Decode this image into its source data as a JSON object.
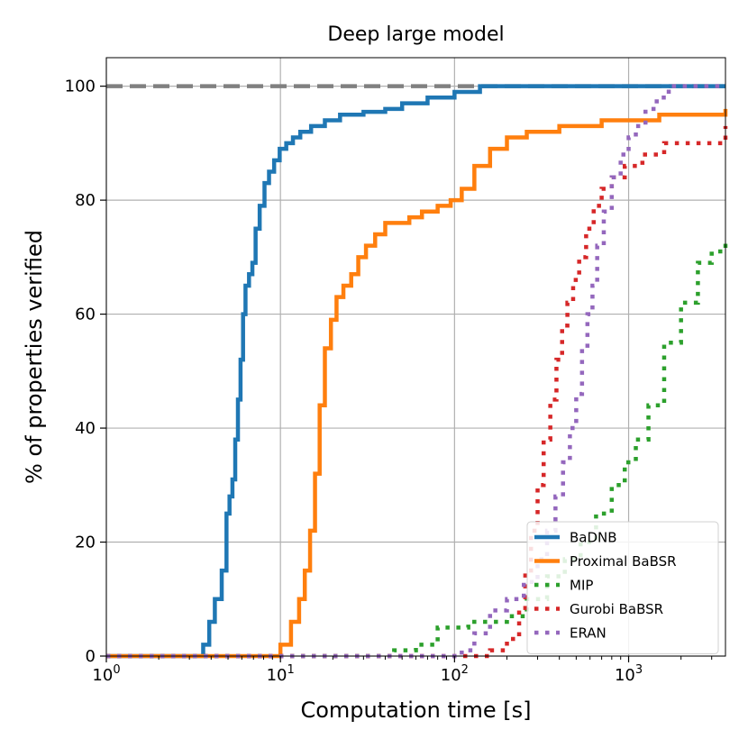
{
  "chart_data": {
    "type": "line",
    "title": "Deep large model",
    "xlabel": "Computation time [s]",
    "ylabel": "% of properties verified",
    "xscale": "log",
    "xlim": [
      1,
      3600
    ],
    "ylim": [
      0,
      105
    ],
    "grid": true,
    "legend_position": "lower-right",
    "x_ticks": [
      {
        "value": 1,
        "label_base": "10",
        "label_exp": "0"
      },
      {
        "value": 10,
        "label_base": "10",
        "label_exp": "1"
      },
      {
        "value": 100,
        "label_base": "10",
        "label_exp": "2"
      },
      {
        "value": 1000,
        "label_base": "10",
        "label_exp": "3"
      }
    ],
    "y_ticks": [
      0,
      20,
      40,
      60,
      80,
      100
    ],
    "reference_line": {
      "y": 100,
      "color": "#808080",
      "style": "dashed"
    },
    "series": [
      {
        "name": "BaDNB",
        "color": "#1f77b4",
        "style": "solid",
        "x": [
          1,
          3.55,
          3.6,
          3.9,
          4.2,
          4.6,
          4.9,
          5.1,
          5.3,
          5.5,
          5.7,
          5.9,
          6.1,
          6.3,
          6.6,
          6.9,
          7.2,
          7.6,
          8.1,
          8.6,
          9.2,
          9.9,
          10.8,
          11.8,
          13.0,
          15.0,
          18.0,
          22.0,
          30.0,
          40.0,
          50.0,
          70.0,
          100.0,
          140.0,
          200.0,
          3600
        ],
        "values": [
          0,
          0,
          2,
          6,
          10,
          15,
          25,
          28,
          31,
          38,
          45,
          52,
          60,
          65,
          67,
          69,
          75,
          79,
          83,
          85,
          87,
          89,
          90,
          91,
          92,
          93,
          94,
          95,
          95.5,
          96,
          97,
          98,
          99,
          100,
          100,
          100
        ]
      },
      {
        "name": "Proximal BaBSR",
        "color": "#ff7f0e",
        "style": "solid",
        "x": [
          1,
          9.5,
          10.0,
          11.5,
          12.8,
          13.8,
          14.8,
          15.8,
          16.8,
          18.0,
          19.5,
          21.0,
          23.0,
          25.5,
          28.0,
          31.0,
          35.0,
          40.0,
          45.0,
          55.0,
          65.0,
          80.0,
          95.0,
          110.0,
          130.0,
          160.0,
          200.0,
          260.0,
          400.0,
          700.0,
          1500.0,
          3600
        ],
        "values": [
          0,
          0,
          2,
          6,
          10,
          15,
          22,
          32,
          44,
          54,
          59,
          63,
          65,
          67,
          70,
          72,
          74,
          76,
          76,
          77,
          78,
          79,
          80,
          82,
          86,
          89,
          91,
          92,
          93,
          94,
          95,
          96
        ]
      },
      {
        "name": "MIP",
        "color": "#2ca02c",
        "style": "dotted",
        "x": [
          1,
          35,
          45,
          60,
          80,
          120,
          160,
          200,
          260,
          340,
          430,
          530,
          650,
          800,
          950,
          1100,
          1300,
          1600,
          2000,
          2500,
          3000,
          3600
        ],
        "values": [
          0,
          0,
          1,
          2,
          5,
          6,
          6,
          7,
          10,
          14,
          17,
          20,
          25,
          30,
          34,
          38,
          44,
          55,
          62,
          69,
          71,
          73
        ]
      },
      {
        "name": "Gurobi BaBSR",
        "color": "#d62728",
        "style": "dotted",
        "x": [
          1,
          130,
          140,
          160,
          200,
          235,
          255,
          275,
          300,
          325,
          355,
          385,
          415,
          445,
          480,
          520,
          570,
          630,
          700,
          800,
          950,
          1200,
          1600,
          2200,
          3600
        ],
        "values": [
          0,
          0,
          0,
          1,
          3,
          8,
          15,
          22,
          30,
          38,
          45,
          52,
          58,
          62,
          66,
          70,
          75,
          79,
          82,
          84,
          86,
          88,
          90,
          90,
          93
        ]
      },
      {
        "name": "ERAN",
        "color": "#9467bd",
        "style": "dotted",
        "x": [
          1,
          90,
          110,
          130,
          160,
          200,
          250,
          300,
          340,
          380,
          420,
          460,
          500,
          540,
          580,
          620,
          660,
          720,
          800,
          900,
          1000,
          1100,
          1250,
          1450,
          1700,
          3600
        ],
        "values": [
          0,
          0,
          1,
          4,
          8,
          10,
          13,
          17,
          22,
          28,
          34,
          40,
          46,
          54,
          60,
          65,
          72,
          78,
          84,
          88,
          91,
          93,
          96,
          98,
          100,
          100
        ]
      }
    ]
  }
}
